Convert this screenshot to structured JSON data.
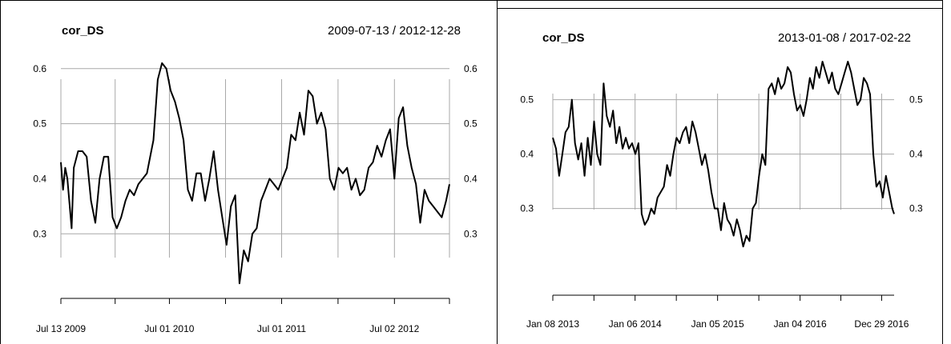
{
  "chart_data": [
    {
      "type": "line",
      "title": "cor_DS",
      "date_range": "2009-07-13 / 2012-12-28",
      "x_tick_labels": [
        "Jul 13 2009",
        "Jul 01 2010",
        "Jul 01 2011",
        "Jul 02 2012"
      ],
      "x_tick_dates": [
        "2009-07-13",
        "2010-07-01",
        "2011-07-01",
        "2012-07-02"
      ],
      "y_ticks": [
        0.3,
        0.4,
        0.5,
        0.6
      ],
      "y_tick_labels": [
        "0.3",
        "0.4",
        "0.5",
        "0.6"
      ],
      "xlim": [
        "2009-07-13",
        "2012-12-28"
      ],
      "ylim": [
        0.19,
        0.62
      ],
      "grid": true,
      "series": [
        {
          "x": [
            "2009-07-13",
            "2009-07-20",
            "2009-07-27",
            "2009-08-03",
            "2009-08-17",
            "2009-08-24",
            "2009-09-07",
            "2009-09-21",
            "2009-10-05",
            "2009-10-19",
            "2009-11-02",
            "2009-11-16",
            "2009-11-30",
            "2009-12-14",
            "2009-12-28",
            "2010-01-11",
            "2010-01-25",
            "2010-02-08",
            "2010-02-22",
            "2010-03-08",
            "2010-03-22",
            "2010-04-05",
            "2010-04-19",
            "2010-05-03",
            "2010-05-10",
            "2010-05-24",
            "2010-06-07",
            "2010-06-21",
            "2010-07-05",
            "2010-07-19",
            "2010-08-02",
            "2010-08-16",
            "2010-08-30",
            "2010-09-13",
            "2010-09-27",
            "2010-10-11",
            "2010-10-25",
            "2010-11-08",
            "2010-11-22",
            "2010-12-06",
            "2010-12-20",
            "2011-01-03",
            "2011-01-17",
            "2011-01-31",
            "2011-02-14",
            "2011-02-28",
            "2011-03-14",
            "2011-03-28",
            "2011-04-11",
            "2011-04-25",
            "2011-05-09",
            "2011-05-23",
            "2011-06-06",
            "2011-06-20",
            "2011-07-04",
            "2011-07-18",
            "2011-08-01",
            "2011-08-15",
            "2011-08-29",
            "2011-09-12",
            "2011-09-26",
            "2011-10-10",
            "2011-10-24",
            "2011-11-07",
            "2011-11-21",
            "2011-12-05",
            "2011-12-19",
            "2012-01-02",
            "2012-01-16",
            "2012-01-30",
            "2012-02-13",
            "2012-02-27",
            "2012-03-12",
            "2012-03-26",
            "2012-04-09",
            "2012-04-23",
            "2012-05-07",
            "2012-05-21",
            "2012-06-04",
            "2012-06-18",
            "2012-07-02",
            "2012-07-16",
            "2012-07-30",
            "2012-08-13",
            "2012-08-27",
            "2012-09-10",
            "2012-09-24",
            "2012-10-08",
            "2012-10-22",
            "2012-11-05",
            "2012-11-19",
            "2012-12-03",
            "2012-12-17",
            "2012-12-28"
          ],
          "values": [
            0.43,
            0.38,
            0.42,
            0.4,
            0.31,
            0.42,
            0.45,
            0.45,
            0.44,
            0.36,
            0.32,
            0.4,
            0.44,
            0.44,
            0.33,
            0.31,
            0.33,
            0.36,
            0.38,
            0.37,
            0.39,
            0.4,
            0.41,
            0.45,
            0.47,
            0.58,
            0.61,
            0.6,
            0.56,
            0.54,
            0.51,
            0.47,
            0.38,
            0.36,
            0.41,
            0.41,
            0.36,
            0.4,
            0.45,
            0.38,
            0.33,
            0.28,
            0.35,
            0.37,
            0.21,
            0.27,
            0.25,
            0.3,
            0.31,
            0.36,
            0.38,
            0.4,
            0.39,
            0.38,
            0.4,
            0.42,
            0.48,
            0.47,
            0.52,
            0.48,
            0.56,
            0.55,
            0.5,
            0.52,
            0.49,
            0.4,
            0.38,
            0.42,
            0.41,
            0.42,
            0.38,
            0.4,
            0.37,
            0.38,
            0.42,
            0.43,
            0.46,
            0.44,
            0.47,
            0.49,
            0.4,
            0.51,
            0.53,
            0.46,
            0.42,
            0.39,
            0.32,
            0.38,
            0.36,
            0.35,
            0.34,
            0.33,
            0.36,
            0.39
          ]
        }
      ]
    },
    {
      "type": "line",
      "title": "cor_DS",
      "date_range": "2013-01-08 / 2017-02-22",
      "x_tick_labels": [
        "Jan 08 2013",
        "Jan 06 2014",
        "Jan 05 2015",
        "Jan 04 2016",
        "Dec 29 2016"
      ],
      "x_tick_dates": [
        "2013-01-08",
        "2014-01-06",
        "2015-01-05",
        "2016-01-04",
        "2016-12-29"
      ],
      "y_ticks": [
        0.3,
        0.4,
        0.5
      ],
      "y_tick_labels": [
        "0.3",
        "0.4",
        "0.5"
      ],
      "xlim": [
        "2013-01-08",
        "2017-02-22"
      ],
      "ylim": [
        0.22,
        0.57
      ],
      "grid": true,
      "series": [
        {
          "x": [
            "2013-01-08",
            "2013-01-22",
            "2013-02-05",
            "2013-02-19",
            "2013-03-05",
            "2013-03-19",
            "2013-04-02",
            "2013-04-16",
            "2013-04-30",
            "2013-05-14",
            "2013-05-28",
            "2013-06-11",
            "2013-06-25",
            "2013-07-09",
            "2013-07-23",
            "2013-08-06",
            "2013-08-20",
            "2013-09-03",
            "2013-09-17",
            "2013-10-01",
            "2013-10-15",
            "2013-10-29",
            "2013-11-12",
            "2013-11-26",
            "2013-12-10",
            "2013-12-24",
            "2014-01-07",
            "2014-01-21",
            "2014-02-04",
            "2014-02-18",
            "2014-03-04",
            "2014-03-18",
            "2014-04-01",
            "2014-04-15",
            "2014-04-29",
            "2014-05-13",
            "2014-05-27",
            "2014-06-10",
            "2014-06-24",
            "2014-07-08",
            "2014-07-22",
            "2014-08-05",
            "2014-08-19",
            "2014-09-02",
            "2014-09-16",
            "2014-09-30",
            "2014-10-14",
            "2014-10-28",
            "2014-11-11",
            "2014-11-25",
            "2014-12-09",
            "2014-12-23",
            "2015-01-06",
            "2015-01-20",
            "2015-02-03",
            "2015-02-17",
            "2015-03-03",
            "2015-03-17",
            "2015-03-31",
            "2015-04-14",
            "2015-04-28",
            "2015-05-12",
            "2015-05-26",
            "2015-06-09",
            "2015-06-23",
            "2015-07-07",
            "2015-07-21",
            "2015-08-04",
            "2015-08-18",
            "2015-09-01",
            "2015-09-15",
            "2015-09-29",
            "2015-10-13",
            "2015-10-27",
            "2015-11-10",
            "2015-11-24",
            "2015-12-08",
            "2015-12-22",
            "2016-01-05",
            "2016-01-19",
            "2016-02-02",
            "2016-02-16",
            "2016-03-01",
            "2016-03-15",
            "2016-03-29",
            "2016-04-12",
            "2016-04-26",
            "2016-05-10",
            "2016-05-24",
            "2016-06-07",
            "2016-06-21",
            "2016-07-05",
            "2016-07-19",
            "2016-08-02",
            "2016-08-16",
            "2016-08-30",
            "2016-09-13",
            "2016-09-27",
            "2016-10-11",
            "2016-10-25",
            "2016-11-08",
            "2016-11-22",
            "2016-12-06",
            "2016-12-20",
            "2017-01-03",
            "2017-01-17",
            "2017-01-31",
            "2017-02-14",
            "2017-02-22"
          ],
          "values": [
            0.43,
            0.41,
            0.36,
            0.4,
            0.44,
            0.45,
            0.5,
            0.42,
            0.39,
            0.42,
            0.36,
            0.43,
            0.38,
            0.46,
            0.4,
            0.38,
            0.53,
            0.47,
            0.45,
            0.48,
            0.42,
            0.45,
            0.41,
            0.43,
            0.41,
            0.42,
            0.4,
            0.42,
            0.29,
            0.27,
            0.28,
            0.3,
            0.29,
            0.32,
            0.33,
            0.34,
            0.38,
            0.36,
            0.4,
            0.43,
            0.42,
            0.44,
            0.45,
            0.42,
            0.46,
            0.44,
            0.41,
            0.38,
            0.4,
            0.37,
            0.33,
            0.3,
            0.3,
            0.26,
            0.31,
            0.28,
            0.27,
            0.25,
            0.28,
            0.26,
            0.23,
            0.25,
            0.24,
            0.3,
            0.31,
            0.36,
            0.4,
            0.38,
            0.52,
            0.53,
            0.51,
            0.54,
            0.52,
            0.53,
            0.56,
            0.55,
            0.51,
            0.48,
            0.49,
            0.47,
            0.5,
            0.54,
            0.52,
            0.56,
            0.54,
            0.57,
            0.55,
            0.53,
            0.55,
            0.52,
            0.51,
            0.53,
            0.55,
            0.57,
            0.55,
            0.52,
            0.49,
            0.5,
            0.54,
            0.53,
            0.51,
            0.4,
            0.34,
            0.35,
            0.32,
            0.36,
            0.33,
            0.3,
            0.29
          ]
        }
      ]
    }
  ]
}
